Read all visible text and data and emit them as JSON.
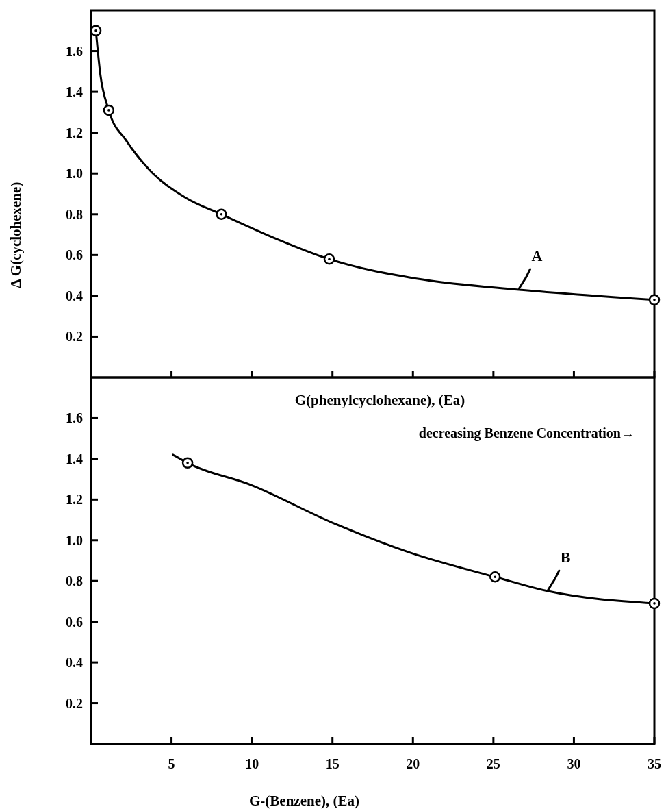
{
  "chart_data": [
    {
      "type": "line",
      "ylabel": "Δ G(cyclohexene)",
      "xlabel": "G(phenylcyclohexane), (Ea)",
      "annotations": [
        "decreasing Benzene Concentration→"
      ],
      "tick_labels": "y",
      "xlim": [
        0,
        35
      ],
      "xticks": [
        {
          "value": 5,
          "label": null
        },
        {
          "value": 10,
          "label": null
        },
        {
          "value": 15,
          "label": null
        },
        {
          "value": 20,
          "label": null
        },
        {
          "value": 25,
          "label": null
        },
        {
          "value": 30,
          "label": null
        },
        {
          "value": 35,
          "label": null
        }
      ],
      "ylim": [
        0,
        1.8
      ],
      "yticks": [
        0.2,
        0.4,
        0.6,
        0.8,
        {
          "value": 1.0,
          "label": "1.0"
        },
        1.2,
        1.4,
        1.6
      ],
      "grid": false,
      "series": [
        {
          "name": "A",
          "color": "#000000",
          "marker": "none",
          "x": [
            0.3,
            0.57,
            1.1,
            2.2,
            3.6,
            5.9,
            8.1,
            11.5,
            14.8,
            20.6,
            26.6,
            35
          ],
          "values": [
            1.7,
            1.49,
            1.31,
            1.16,
            1.02,
            0.88,
            0.8,
            0.68,
            0.58,
            0.48,
            0.43,
            0.38
          ]
        },
        {
          "type": "scatter",
          "color": "#000000",
          "marker": "circle",
          "x": [
            0.3,
            1.1,
            8.1,
            14.8,
            35
          ],
          "values": [
            1.7,
            1.31,
            0.8,
            0.58,
            0.38
          ]
        }
      ]
    },
    {
      "type": "line",
      "xlabel": "G-(Benzene), (Ea)",
      "xlim": [
        0,
        35
      ],
      "xticks": [
        5,
        10,
        15,
        20,
        25,
        30,
        35
      ],
      "ylim": [
        0,
        1.8
      ],
      "yticks": [
        0.2,
        0.4,
        0.6,
        0.8,
        {
          "value": 1.0,
          "label": "1.0"
        },
        1.2,
        1.4,
        1.6
      ],
      "grid": false,
      "series": [
        {
          "name": "B",
          "color": "#000000",
          "marker": "none",
          "x": [
            5.1,
            6,
            10,
            14.9,
            19.8,
            25.1,
            28.4,
            35
          ],
          "values": [
            1.42,
            1.38,
            1.27,
            1.09,
            0.94,
            0.82,
            0.75,
            0.69
          ]
        },
        {
          "type": "scatter",
          "color": "#000000",
          "marker": "circle",
          "x": [
            6,
            25.1,
            35
          ],
          "values": [
            1.38,
            0.82,
            0.69
          ]
        }
      ]
    }
  ]
}
